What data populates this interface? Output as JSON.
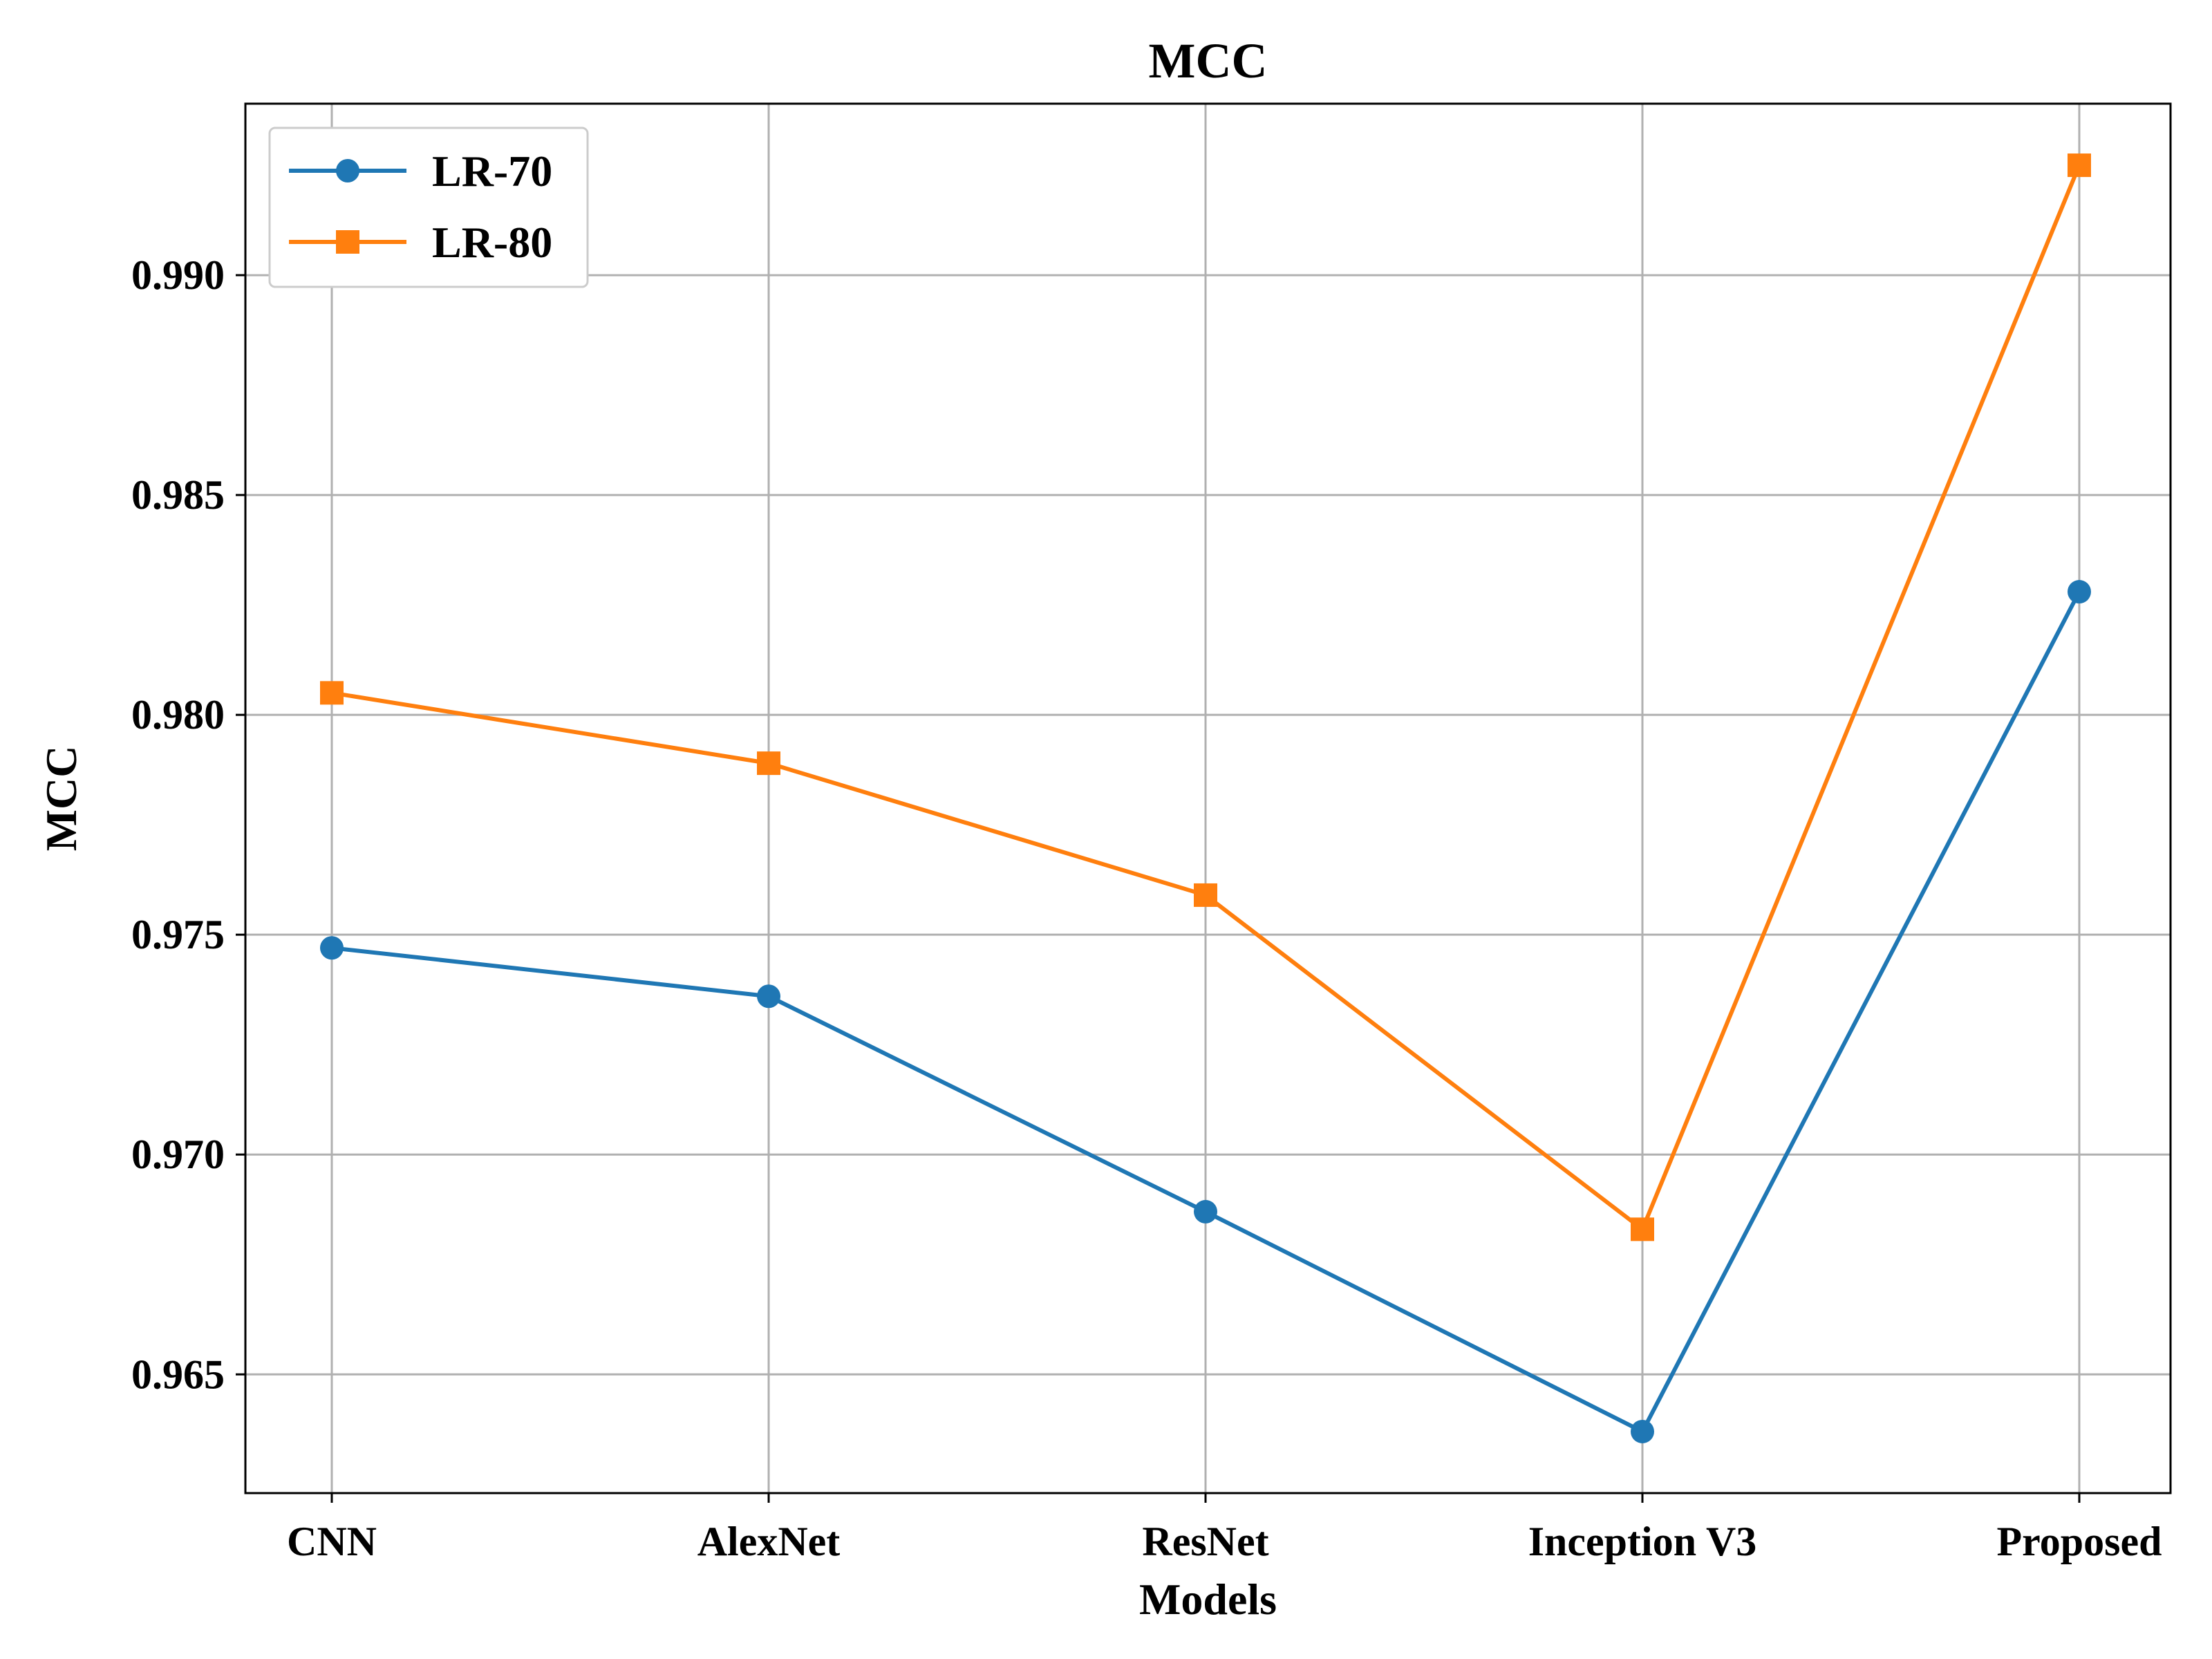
{
  "chart_data": {
    "type": "line",
    "title": "MCC",
    "xlabel": "Models",
    "ylabel": "MCC",
    "categories": [
      "CNN",
      "AlexNet",
      "ResNet",
      "Inception V3",
      "Proposed"
    ],
    "ylim": [
      0.9623,
      0.9939
    ],
    "yticks": [
      0.965,
      0.97,
      0.975,
      0.98,
      0.985,
      0.99
    ],
    "ytick_labels": [
      "0.965",
      "0.970",
      "0.975",
      "0.980",
      "0.985",
      "0.990"
    ],
    "grid": true,
    "legend_position": "top-left",
    "series": [
      {
        "name": "LR-70",
        "marker": "circle",
        "color": "#1f77b4",
        "values": [
          0.9747,
          0.9736,
          0.9687,
          0.9637,
          0.9828
        ]
      },
      {
        "name": "LR-80",
        "marker": "square",
        "color": "#ff7f0e",
        "values": [
          0.9805,
          0.9789,
          0.9759,
          0.9683,
          0.9925
        ]
      }
    ]
  }
}
